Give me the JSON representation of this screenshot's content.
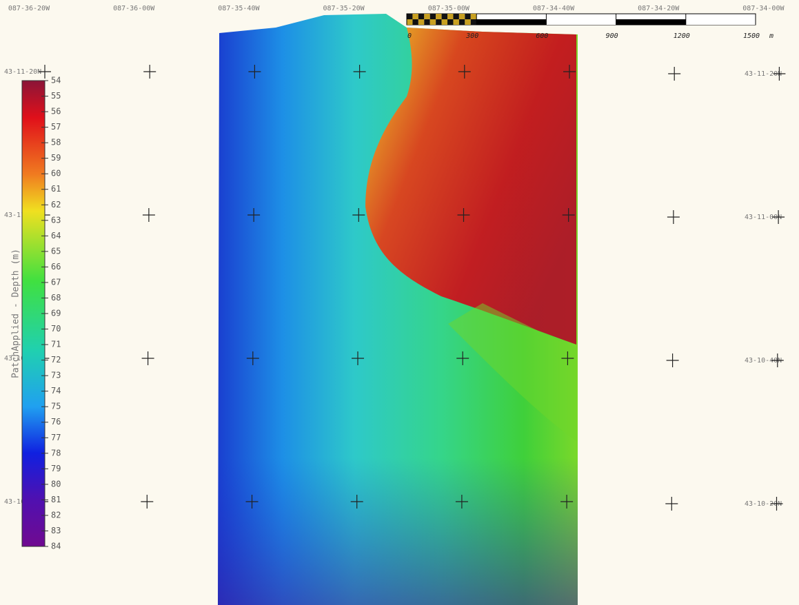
{
  "map": {
    "longitude_labels": [
      "087-36-20W",
      "087-36-00W",
      "087-35-40W",
      "087-35-20W",
      "087-35-00W",
      "087-34-40W",
      "087-34-20W",
      "087-34-00W"
    ],
    "latitude_labels": [
      "43-11-20N",
      "43-11-00N",
      "43-10-40N",
      "43-10-20N"
    ],
    "colorbar": {
      "label": "PatchApplied - Depth (m)",
      "range": [
        54,
        84
      ],
      "ticks": [
        54,
        55,
        56,
        57,
        58,
        59,
        60,
        61,
        62,
        63,
        64,
        65,
        66,
        67,
        68,
        69,
        70,
        71,
        72,
        73,
        74,
        75,
        76,
        77,
        78,
        79,
        80,
        81,
        82,
        83,
        84
      ]
    },
    "scale_bar": {
      "ticks": [
        0,
        300,
        600,
        900,
        1200,
        1500
      ],
      "unit": "m"
    }
  }
}
